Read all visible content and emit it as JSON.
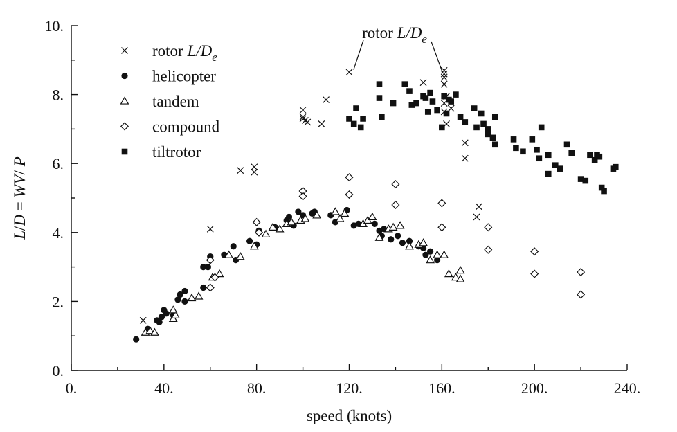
{
  "chart_data": {
    "type": "scatter",
    "xlabel": "speed (knots)",
    "ylabel_parts": [
      "L",
      "/",
      "D",
      " = ",
      "WV",
      "/ ",
      "P"
    ],
    "xlim": [
      0,
      240
    ],
    "ylim": [
      0,
      10
    ],
    "x_ticks": [
      0,
      40,
      80,
      120,
      160,
      200,
      240
    ],
    "x_tick_labels": [
      "0.",
      "40.",
      "80.",
      "120.",
      "160.",
      "200.",
      "240."
    ],
    "y_ticks": [
      0,
      2,
      4,
      6,
      8,
      10
    ],
    "y_tick_labels": [
      "0.",
      "2.",
      "4.",
      "6.",
      "8.",
      "10."
    ],
    "legend_position": "top-left",
    "annotation": {
      "text_prefix": "rotor ",
      "text_italic": "L/D",
      "text_sub": "e",
      "targets": [
        [
          121,
          8.6
        ],
        [
          161,
          8.5
        ]
      ]
    },
    "series": [
      {
        "name_prefix": "rotor ",
        "name_italic": "L/D",
        "name_sub": "e",
        "marker": "x",
        "points": [
          [
            31,
            1.45
          ],
          [
            60,
            4.1
          ],
          [
            73,
            5.8
          ],
          [
            79,
            5.9
          ],
          [
            79,
            5.75
          ],
          [
            100,
            7.55
          ],
          [
            100,
            7.35
          ],
          [
            100,
            7.3
          ],
          [
            101,
            7.25
          ],
          [
            102,
            7.2
          ],
          [
            108,
            7.15
          ],
          [
            110,
            7.85
          ],
          [
            120,
            8.65
          ],
          [
            152,
            8.35
          ],
          [
            161,
            8.7
          ],
          [
            161,
            8.6
          ],
          [
            161,
            8.5
          ],
          [
            161,
            8.3
          ],
          [
            162,
            7.95
          ],
          [
            161,
            7.75
          ],
          [
            161,
            7.5
          ],
          [
            164,
            7.6
          ],
          [
            162,
            7.15
          ],
          [
            170,
            6.6
          ],
          [
            170,
            6.15
          ],
          [
            175,
            4.45
          ],
          [
            176,
            4.75
          ]
        ]
      },
      {
        "name": "helicopter",
        "marker": "circle",
        "points": [
          [
            28,
            0.9
          ],
          [
            33,
            1.2
          ],
          [
            37,
            1.45
          ],
          [
            38,
            1.4
          ],
          [
            39,
            1.55
          ],
          [
            40,
            1.75
          ],
          [
            41,
            1.65
          ],
          [
            44,
            1.6
          ],
          [
            46,
            2.05
          ],
          [
            47,
            2.2
          ],
          [
            49,
            2.3
          ],
          [
            49,
            2.0
          ],
          [
            57,
            2.4
          ],
          [
            57,
            3.0
          ],
          [
            59,
            3.0
          ],
          [
            60,
            3.3
          ],
          [
            66,
            3.35
          ],
          [
            70,
            3.6
          ],
          [
            71,
            3.2
          ],
          [
            77,
            3.75
          ],
          [
            80,
            3.65
          ],
          [
            81,
            4.05
          ],
          [
            88,
            4.15
          ],
          [
            93,
            4.35
          ],
          [
            94,
            4.45
          ],
          [
            96,
            4.2
          ],
          [
            98,
            4.6
          ],
          [
            100,
            4.5
          ],
          [
            104,
            4.55
          ],
          [
            105,
            4.6
          ],
          [
            112,
            4.5
          ],
          [
            114,
            4.3
          ],
          [
            119,
            4.65
          ],
          [
            122,
            4.2
          ],
          [
            124,
            4.25
          ],
          [
            131,
            4.25
          ],
          [
            133,
            4.05
          ],
          [
            134,
            3.9
          ],
          [
            135,
            4.1
          ],
          [
            138,
            3.8
          ],
          [
            141,
            3.9
          ],
          [
            143,
            3.7
          ],
          [
            146,
            3.75
          ],
          [
            150,
            3.6
          ],
          [
            152,
            3.55
          ],
          [
            153,
            3.35
          ],
          [
            155,
            3.45
          ],
          [
            158,
            3.2
          ]
        ]
      },
      {
        "name": "tandem",
        "marker": "triangle",
        "points": [
          [
            32,
            1.1
          ],
          [
            34,
            1.15
          ],
          [
            36,
            1.1
          ],
          [
            44,
            1.5
          ],
          [
            45,
            1.6
          ],
          [
            44,
            1.75
          ],
          [
            52,
            2.1
          ],
          [
            55,
            2.15
          ],
          [
            64,
            2.8
          ],
          [
            61,
            2.7
          ],
          [
            68,
            3.35
          ],
          [
            73,
            3.3
          ],
          [
            79,
            3.6
          ],
          [
            84,
            3.95
          ],
          [
            87,
            4.15
          ],
          [
            90,
            4.1
          ],
          [
            93,
            4.25
          ],
          [
            95,
            4.3
          ],
          [
            99,
            4.35
          ],
          [
            101,
            4.4
          ],
          [
            106,
            4.5
          ],
          [
            114,
            4.6
          ],
          [
            116,
            4.4
          ],
          [
            118,
            4.55
          ],
          [
            126,
            4.25
          ],
          [
            128,
            4.35
          ],
          [
            130,
            4.45
          ],
          [
            133,
            3.85
          ],
          [
            137,
            4.1
          ],
          [
            139,
            4.15
          ],
          [
            142,
            4.2
          ],
          [
            146,
            3.6
          ],
          [
            150,
            3.65
          ],
          [
            152,
            3.7
          ],
          [
            155,
            3.2
          ],
          [
            158,
            3.35
          ],
          [
            161,
            3.35
          ],
          [
            163,
            2.8
          ],
          [
            166,
            2.7
          ],
          [
            168,
            2.65
          ],
          [
            168,
            2.9
          ]
        ]
      },
      {
        "name": "compound",
        "marker": "diamond",
        "points": [
          [
            60,
            3.2
          ],
          [
            60,
            2.4
          ],
          [
            62,
            2.7
          ],
          [
            80,
            4.3
          ],
          [
            81,
            4.0
          ],
          [
            100,
            5.2
          ],
          [
            100,
            5.05
          ],
          [
            120,
            5.6
          ],
          [
            120,
            5.1
          ],
          [
            140,
            5.4
          ],
          [
            140,
            4.8
          ],
          [
            160,
            4.85
          ],
          [
            160,
            4.15
          ],
          [
            180,
            4.15
          ],
          [
            180,
            3.5
          ],
          [
            200,
            3.45
          ],
          [
            200,
            2.8
          ],
          [
            220,
            2.85
          ],
          [
            220,
            2.2
          ]
        ]
      },
      {
        "name": "tiltrotor",
        "marker": "square",
        "points": [
          [
            120,
            7.3
          ],
          [
            122,
            7.15
          ],
          [
            123,
            7.6
          ],
          [
            125,
            7.05
          ],
          [
            126,
            7.3
          ],
          [
            133,
            8.3
          ],
          [
            133,
            7.9
          ],
          [
            134,
            7.35
          ],
          [
            139,
            7.75
          ],
          [
            144,
            8.3
          ],
          [
            146,
            8.1
          ],
          [
            147,
            7.7
          ],
          [
            149,
            7.75
          ],
          [
            152,
            7.95
          ],
          [
            153,
            7.9
          ],
          [
            154,
            7.5
          ],
          [
            155,
            8.05
          ],
          [
            156,
            7.8
          ],
          [
            158,
            7.55
          ],
          [
            160,
            7.05
          ],
          [
            161,
            7.95
          ],
          [
            162,
            7.45
          ],
          [
            163,
            7.85
          ],
          [
            164,
            7.8
          ],
          [
            166,
            8.0
          ],
          [
            168,
            7.35
          ],
          [
            170,
            7.2
          ],
          [
            174,
            7.6
          ],
          [
            175,
            7.05
          ],
          [
            177,
            7.45
          ],
          [
            178,
            7.15
          ],
          [
            180,
            6.85
          ],
          [
            180,
            7.0
          ],
          [
            182,
            6.75
          ],
          [
            183,
            6.55
          ],
          [
            183,
            7.35
          ],
          [
            191,
            6.7
          ],
          [
            192,
            6.45
          ],
          [
            195,
            6.35
          ],
          [
            199,
            6.7
          ],
          [
            201,
            6.4
          ],
          [
            202,
            6.15
          ],
          [
            203,
            7.05
          ],
          [
            206,
            6.25
          ],
          [
            206,
            5.7
          ],
          [
            209,
            5.95
          ],
          [
            211,
            5.85
          ],
          [
            214,
            6.55
          ],
          [
            216,
            6.3
          ],
          [
            220,
            5.55
          ],
          [
            222,
            5.5
          ],
          [
            224,
            6.25
          ],
          [
            226,
            6.1
          ],
          [
            227,
            6.25
          ],
          [
            228,
            6.2
          ],
          [
            229,
            5.3
          ],
          [
            230,
            5.2
          ],
          [
            234,
            5.85
          ],
          [
            235,
            5.9
          ]
        ]
      }
    ]
  }
}
